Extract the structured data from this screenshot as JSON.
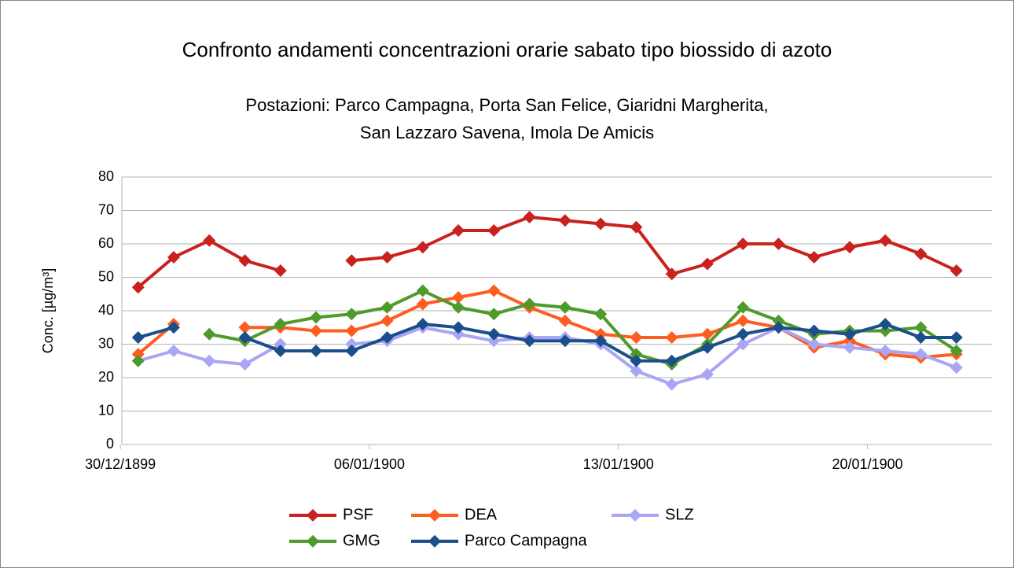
{
  "chart_data": {
    "type": "line",
    "title": "Confronto andamenti concentrazioni orarie sabato tipo biossido di azoto",
    "subtitle": [
      "Postazioni: Parco Campagna, Porta San Felice, Giaridni Margherita,",
      "San Lazzaro Savena, Imola De Amicis"
    ],
    "y_label": "Conc. [µg/m³]",
    "x": [
      "1899-12-30",
      "1899-12-31",
      "1900-01-01",
      "1900-01-02",
      "1900-01-03",
      "1900-01-04",
      "1900-01-05",
      "1900-01-06",
      "1900-01-07",
      "1900-01-08",
      "1900-01-09",
      "1900-01-10",
      "1900-01-11",
      "1900-01-12",
      "1900-01-13",
      "1900-01-14",
      "1900-01-15",
      "1900-01-16",
      "1900-01-17",
      "1900-01-18",
      "1900-01-19",
      "1900-01-20",
      "1900-01-21",
      "1900-01-22"
    ],
    "xlim": [
      "1899-12-29T13:00",
      "1900-01-23T00:00"
    ],
    "xticks": [
      {
        "value": "1899-12-29T12:00",
        "label": "30/12/1899"
      },
      {
        "value": "1900-01-05T12:00",
        "label": "06/01/1900"
      },
      {
        "value": "1900-01-12T12:00",
        "label": "13/01/1900"
      },
      {
        "value": "1900-01-19T12:00",
        "label": "20/01/1900"
      }
    ],
    "ylim": [
      0,
      80
    ],
    "yticks": [
      0,
      10,
      20,
      30,
      40,
      50,
      60,
      70,
      80
    ],
    "grid": true,
    "series": [
      {
        "name": "PSF",
        "color": "#c9211e",
        "values": [
          47,
          56,
          61,
          55,
          52,
          null,
          55,
          56,
          59,
          64,
          64,
          68,
          67,
          66,
          65,
          51,
          54,
          60,
          60,
          56,
          59,
          61,
          57,
          52
        ]
      },
      {
        "name": "DEA",
        "color": "#ff5c1f",
        "values": [
          27,
          36,
          null,
          35,
          35,
          34,
          34,
          37,
          42,
          44,
          46,
          41,
          37,
          33,
          32,
          32,
          33,
          37,
          35,
          29,
          31,
          27,
          26,
          27
        ]
      },
      {
        "name": "SLZ",
        "color": "#a9a6f5",
        "values": [
          25,
          28,
          25,
          24,
          30,
          null,
          30,
          31,
          35,
          33,
          31,
          32,
          32,
          30,
          22,
          18,
          21,
          30,
          35,
          30,
          29,
          28,
          27,
          23
        ]
      },
      {
        "name": "GMG",
        "color": "#4e9a2a",
        "values": [
          25,
          null,
          33,
          31,
          36,
          38,
          39,
          41,
          46,
          41,
          39,
          42,
          41,
          39,
          27,
          24,
          30,
          41,
          37,
          33,
          34,
          34,
          35,
          28
        ]
      },
      {
        "name": "Parco Campagna",
        "color": "#1b4e8c",
        "values": [
          32,
          35,
          null,
          32,
          28,
          28,
          28,
          32,
          36,
          35,
          33,
          31,
          31,
          31,
          25,
          25,
          29,
          33,
          35,
          34,
          33,
          36,
          32,
          32
        ]
      }
    ]
  }
}
